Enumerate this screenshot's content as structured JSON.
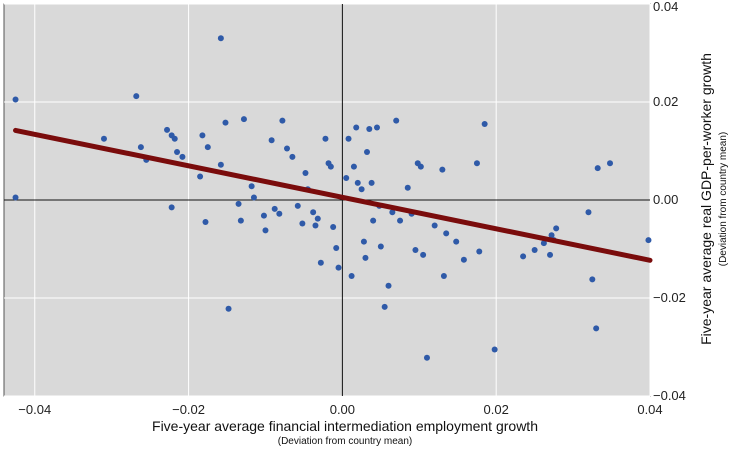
{
  "chart_data": {
    "type": "scatter",
    "title": "",
    "xlabel": "Five-year average financial intermediation employment growth",
    "xlabel_note": "(Deviation from country mean)",
    "ylabel": "Five-year average real GDP-per-worker growth",
    "ylabel_note": "(Deviation from country mean)",
    "xlim": [
      -0.044,
      0.04
    ],
    "ylim": [
      -0.04,
      0.04
    ],
    "x_ticks": [
      -0.04,
      -0.02,
      0.0,
      0.02,
      0.04
    ],
    "x_tick_labels": [
      "−0.04",
      "−0.02",
      "0.00",
      "0.02",
      "0.04"
    ],
    "y_ticks": [
      -0.04,
      -0.02,
      0.0,
      0.02,
      0.04
    ],
    "y_tick_labels": [
      "−0.04",
      "−0.02",
      "0.00",
      "0.02",
      "0.04"
    ],
    "grid": true,
    "colors": {
      "background": "#d9d9d9",
      "points": "#2f5aa8",
      "fit_line": "#7a0c0c",
      "grid": "#ffffff"
    },
    "fit_line": {
      "x": [
        -0.0425,
        0.04
      ],
      "y": [
        0.0142,
        -0.0123
      ]
    },
    "points": [
      [
        -0.0425,
        0.0205
      ],
      [
        -0.0425,
        0.0005
      ],
      [
        -0.0268,
        0.0212
      ],
      [
        -0.031,
        0.0125
      ],
      [
        -0.0262,
        0.0108
      ],
      [
        -0.0255,
        0.0082
      ],
      [
        -0.0228,
        0.0143
      ],
      [
        -0.0222,
        0.0132
      ],
      [
        -0.0218,
        0.0125
      ],
      [
        -0.0215,
        0.0098
      ],
      [
        -0.0208,
        0.0088
      ],
      [
        -0.0222,
        -0.0015
      ],
      [
        -0.0182,
        0.0132
      ],
      [
        -0.0175,
        0.0108
      ],
      [
        -0.0185,
        0.0048
      ],
      [
        -0.0178,
        -0.0045
      ],
      [
        -0.0158,
        0.033
      ],
      [
        -0.0152,
        0.0158
      ],
      [
        -0.0158,
        0.0072
      ],
      [
        -0.0148,
        -0.0222
      ],
      [
        -0.0135,
        -0.0008
      ],
      [
        -0.0128,
        0.0165
      ],
      [
        -0.0132,
        -0.0042
      ],
      [
        -0.0118,
        0.0028
      ],
      [
        -0.0115,
        0.0005
      ],
      [
        -0.0102,
        -0.0032
      ],
      [
        -0.01,
        -0.0062
      ],
      [
        -0.0092,
        0.0122
      ],
      [
        -0.0088,
        -0.0018
      ],
      [
        -0.0082,
        -0.0028
      ],
      [
        -0.0078,
        0.0162
      ],
      [
        -0.0072,
        0.0105
      ],
      [
        -0.0065,
        0.0088
      ],
      [
        -0.0058,
        -0.0012
      ],
      [
        -0.0052,
        -0.0048
      ],
      [
        -0.0048,
        0.0055
      ],
      [
        -0.0045,
        0.0022
      ],
      [
        -0.0038,
        -0.0025
      ],
      [
        -0.0035,
        -0.0052
      ],
      [
        -0.0032,
        -0.0038
      ],
      [
        -0.0028,
        -0.0128
      ],
      [
        -0.0022,
        0.0125
      ],
      [
        -0.0018,
        0.0075
      ],
      [
        -0.0015,
        0.0068
      ],
      [
        -0.0012,
        -0.0055
      ],
      [
        -0.0008,
        -0.0098
      ],
      [
        -0.0005,
        -0.0138
      ],
      [
        0.0005,
        0.0045
      ],
      [
        0.0008,
        0.0125
      ],
      [
        0.0012,
        -0.0155
      ],
      [
        0.0015,
        0.0068
      ],
      [
        0.0018,
        0.0148
      ],
      [
        0.002,
        0.0035
      ],
      [
        0.0025,
        0.0022
      ],
      [
        0.0028,
        -0.0085
      ],
      [
        0.003,
        -0.0118
      ],
      [
        0.0032,
        0.0098
      ],
      [
        0.0035,
        0.0145
      ],
      [
        0.0038,
        0.0035
      ],
      [
        0.004,
        -0.0042
      ],
      [
        0.0045,
        0.0148
      ],
      [
        0.0048,
        -0.0012
      ],
      [
        0.005,
        -0.0095
      ],
      [
        0.0055,
        -0.0218
      ],
      [
        0.006,
        -0.0175
      ],
      [
        0.0065,
        -0.0025
      ],
      [
        0.007,
        0.0162
      ],
      [
        0.0075,
        -0.0042
      ],
      [
        0.0085,
        0.0025
      ],
      [
        0.009,
        -0.0028
      ],
      [
        0.0095,
        -0.0102
      ],
      [
        0.0098,
        0.0075
      ],
      [
        0.0102,
        0.0068
      ],
      [
        0.0105,
        -0.0112
      ],
      [
        0.011,
        -0.0322
      ],
      [
        0.012,
        -0.0052
      ],
      [
        0.013,
        0.0062
      ],
      [
        0.0132,
        -0.0155
      ],
      [
        0.0135,
        -0.0068
      ],
      [
        0.0148,
        -0.0085
      ],
      [
        0.0158,
        -0.0122
      ],
      [
        0.0175,
        0.0075
      ],
      [
        0.0178,
        -0.0105
      ],
      [
        0.0185,
        0.0155
      ],
      [
        0.0198,
        -0.0305
      ],
      [
        0.0235,
        -0.0115
      ],
      [
        0.025,
        -0.0102
      ],
      [
        0.0262,
        -0.0088
      ],
      [
        0.027,
        -0.0112
      ],
      [
        0.0272,
        -0.0072
      ],
      [
        0.0275,
        -0.0082
      ],
      [
        0.0278,
        -0.0058
      ],
      [
        0.032,
        -0.0025
      ],
      [
        0.0325,
        -0.0162
      ],
      [
        0.033,
        -0.0262
      ],
      [
        0.0332,
        0.0065
      ],
      [
        0.0348,
        0.0075
      ],
      [
        0.0398,
        -0.0082
      ]
    ]
  }
}
